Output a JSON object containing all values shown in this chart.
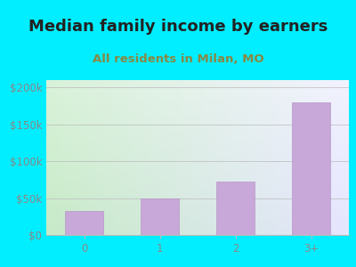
{
  "title": "Median family income by earners",
  "subtitle": "All residents in Milan, MO",
  "categories": [
    "0",
    "1",
    "2",
    "3+"
  ],
  "values": [
    33000,
    50000,
    72000,
    180000
  ],
  "bar_color": "#c8a8d8",
  "bar_edge_color": "#b898c8",
  "background_outer": "#00eeff",
  "background_inner_topleft": "#d8f0d8",
  "background_inner_topright": "#f0f0ff",
  "background_inner_bottom": "#c8e8c8",
  "title_color": "#222222",
  "subtitle_color": "#888844",
  "tick_color": "#888888",
  "ylim": [
    0,
    210000
  ],
  "yticks": [
    0,
    50000,
    100000,
    150000,
    200000
  ],
  "ytick_labels": [
    "$0",
    "$50k",
    "$100k",
    "$150k",
    "$200k"
  ],
  "title_fontsize": 13,
  "subtitle_fontsize": 9.5,
  "tick_fontsize": 8.5
}
